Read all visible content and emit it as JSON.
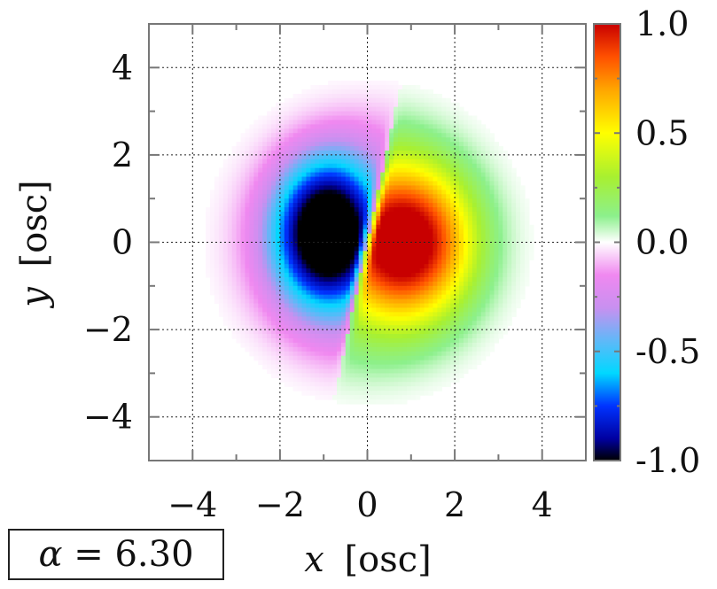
{
  "chart_data": {
    "type": "heatmap",
    "title": "",
    "xlabel": {
      "symbol": "x",
      "unit": "[osc]"
    },
    "ylabel": {
      "symbol": "y",
      "unit": "[osc]"
    },
    "xlim": [
      -5,
      5
    ],
    "ylim": [
      -5,
      5
    ],
    "xticks": [
      "−4",
      "−2",
      "0",
      "2",
      "4"
    ],
    "xtick_values": [
      -4,
      -2,
      0,
      2,
      4
    ],
    "yticks": [
      "4",
      "2",
      "0",
      "−2",
      "−4"
    ],
    "ytick_values": [
      4,
      2,
      0,
      -2,
      -4
    ],
    "grid": true,
    "colorbar": {
      "range": [
        -1.0,
        1.0
      ],
      "tick_labels": [
        "1.0",
        "0.5",
        "0.0",
        "-0.5",
        "-1.0"
      ],
      "tick_values": [
        1.0,
        0.5,
        0.0,
        -0.5,
        -1.0
      ],
      "colormap": [
        {
          "v": -1.0,
          "color": "#000000"
        },
        {
          "v": -0.9,
          "color": "#0000a0"
        },
        {
          "v": -0.75,
          "color": "#0033ff"
        },
        {
          "v": -0.6,
          "color": "#00d8ff"
        },
        {
          "v": -0.45,
          "color": "#60b8f8"
        },
        {
          "v": -0.3,
          "color": "#c890f0"
        },
        {
          "v": -0.15,
          "color": "#f088f0"
        },
        {
          "v": 0.0,
          "color": "#ffffff"
        },
        {
          "v": 0.12,
          "color": "#8cf08c"
        },
        {
          "v": 0.3,
          "color": "#a8f030"
        },
        {
          "v": 0.5,
          "color": "#ffff00"
        },
        {
          "v": 0.7,
          "color": "#ffa500"
        },
        {
          "v": 0.85,
          "color": "#ff5000"
        },
        {
          "v": 1.0,
          "color": "#c80000"
        }
      ]
    },
    "field": {
      "description_free": true,
      "kind": "antisymmetric-lobes",
      "tilt_deg": -12,
      "radius": 3.2,
      "peak_negative": {
        "x": -0.9,
        "y": 0.2,
        "value": -0.95
      },
      "peak_positive": {
        "x": 0.8,
        "y": 0.0,
        "value": 0.8
      }
    },
    "annotation": {
      "symbol": "α",
      "text": "= 6.30"
    }
  }
}
